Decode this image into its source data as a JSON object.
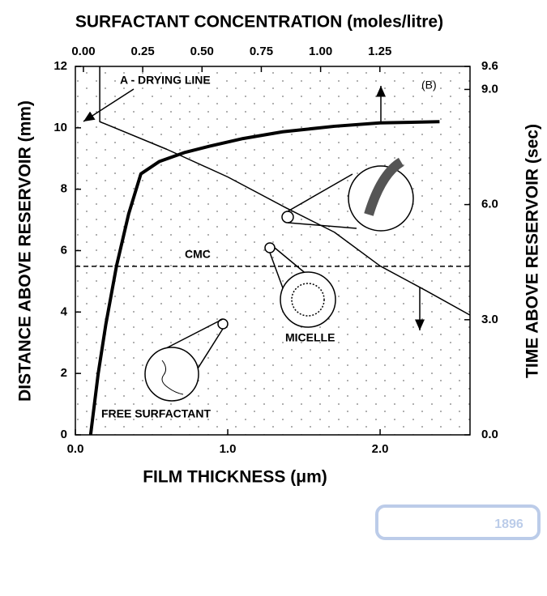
{
  "chart_data": {
    "type": "line",
    "xlabel": "FILM THICKNESS (μm)",
    "ylabel": "DISTANCE ABOVE RESERVOIR (mm)",
    "x2label": "SURFACTANT CONCENTRATION (moles/litre)",
    "y2label": "TIME ABOVE RESERVOIR (sec)",
    "xlim": [
      0,
      2.59
    ],
    "xticks": [
      {
        "value": 0,
        "label": "0.0"
      },
      {
        "value": 1,
        "label": "1.0"
      },
      {
        "value": 2,
        "label": "2.0"
      }
    ],
    "ylim": [
      0,
      12
    ],
    "yticks": [
      0,
      2,
      4,
      6,
      8,
      10,
      12
    ],
    "x2lim": [
      -0.034,
      1.63
    ],
    "x2ticks": [
      {
        "value": 0,
        "label": "0.00"
      },
      {
        "value": 0.25,
        "label": "0.25"
      },
      {
        "value": 0.5,
        "label": "0.50"
      },
      {
        "value": 0.75,
        "label": "0.75"
      },
      {
        "value": 1,
        "label": "1.00"
      },
      {
        "value": 1.25,
        "label": "1.25"
      }
    ],
    "y2lim": [
      0,
      9.6
    ],
    "y2ticks": [
      {
        "value": 0,
        "label": "0.0"
      },
      {
        "value": 3,
        "label": "3.0"
      },
      {
        "value": 6,
        "label": "6.0"
      },
      {
        "value": 9,
        "label": "9.0"
      },
      9.6
    ],
    "grid": false,
    "series": [
      {
        "color": "#000000",
        "width": 4,
        "x": [
          0.1,
          0.15,
          0.2,
          0.27,
          0.35,
          0.43,
          0.55,
          0.72,
          0.88,
          1.1,
          1.36,
          1.7,
          2.0,
          2.39
        ],
        "values": [
          0,
          2,
          3.6,
          5.5,
          7.2,
          8.5,
          8.9,
          9.2,
          9.4,
          9.65,
          9.87,
          10.05,
          10.16,
          10.2
        ]
      },
      {
        "color": "#000000",
        "width": 1.5,
        "x": [
          0.16,
          0.16,
          0.6,
          1.0,
          1.38,
          1.7,
          2.0,
          2.3,
          2.59
        ],
        "values": [
          12,
          10.2,
          9.3,
          8.4,
          7.4,
          6.6,
          5.5,
          4.7,
          3.9
        ]
      }
    ],
    "cmc": {
      "label": "CMC",
      "value": 5.49
    },
    "annotations": [
      "A - DRYING LINE",
      "(B)",
      "MICELLE",
      "FREE SURFACTANT"
    ],
    "watermark": "1896"
  }
}
